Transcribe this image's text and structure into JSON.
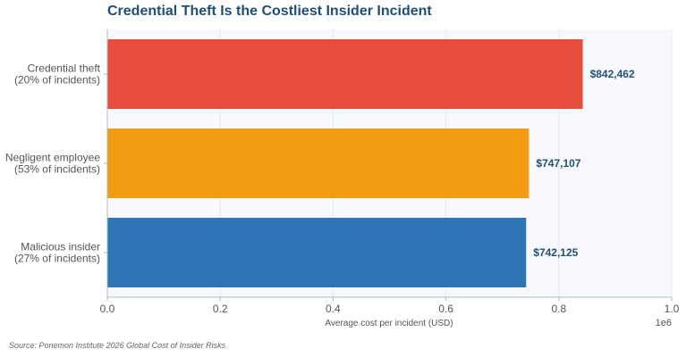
{
  "chart_data": {
    "type": "bar",
    "orientation": "horizontal",
    "title": "Credential Theft Is the Costliest Insider Incident",
    "xlabel": "Average cost per incident (USD)",
    "ylabel": "",
    "xlim": [
      0,
      1000000
    ],
    "x_ticks": [
      0,
      200000,
      400000,
      600000,
      800000,
      1000000
    ],
    "x_tick_labels": [
      "0.0",
      "0.2",
      "0.4",
      "0.6",
      "0.8",
      "1.0"
    ],
    "x_offset_label": "1e6",
    "grid": "vertical",
    "categories": [
      [
        "Credential theft",
        "(20% of incidents)"
      ],
      [
        "Negligent employee",
        "(53% of incidents)"
      ],
      [
        "Malicious insider",
        "(27% of incidents)"
      ]
    ],
    "values": [
      842462,
      747107,
      742125
    ],
    "data_labels": [
      "$842,462",
      "$747,107",
      "$742,125"
    ],
    "colors": [
      "#e74c3c",
      "#f39c12",
      "#2e75b6"
    ]
  },
  "source": "Source: Ponemon Institute 2026 Global Cost of Insider Risks"
}
